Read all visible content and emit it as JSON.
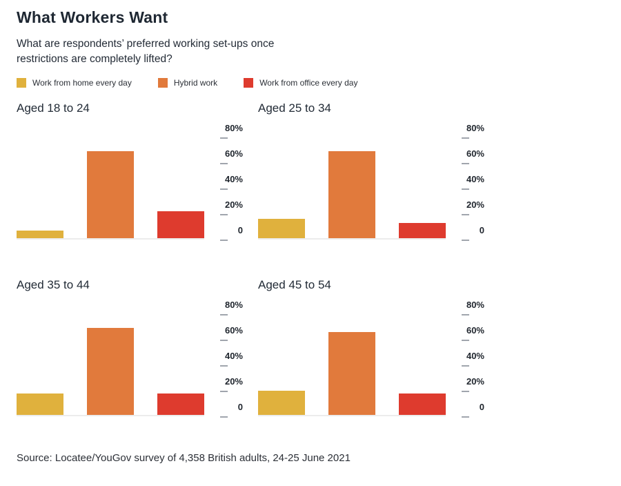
{
  "header": {
    "title": "What Workers Want",
    "subtitle": "What are respondents’ preferred working set-ups once restrictions are completely lifted?"
  },
  "legend": {
    "items": [
      {
        "label": "Work from home every day",
        "color": "#E0B13D"
      },
      {
        "label": "Hybrid work",
        "color": "#E17A3C"
      },
      {
        "label": "Work from office every day",
        "color": "#DE3B2E"
      }
    ]
  },
  "chart_data": {
    "type": "bar",
    "series_labels": [
      "Work from home every day",
      "Hybrid work",
      "Work from office every day"
    ],
    "colors": [
      "#E0B13D",
      "#E17A3C",
      "#DE3B2E"
    ],
    "ylabel": "",
    "xlabel": "",
    "ylim": [
      0,
      80
    ],
    "y_ticks": [
      "80%",
      "60%",
      "40%",
      "20%",
      "0"
    ],
    "y_tick_values": [
      80,
      60,
      40,
      20,
      0
    ],
    "grid": false,
    "legend_position": "top",
    "charts": [
      {
        "title": "Aged 18 to 24",
        "values": [
          6,
          68,
          21
        ]
      },
      {
        "title": "Aged 25 to 34",
        "values": [
          15,
          68,
          12
        ]
      },
      {
        "title": "Aged 35 to 44",
        "values": [
          17,
          68,
          17
        ]
      },
      {
        "title": "Aged 45 to 54",
        "values": [
          19,
          65,
          17
        ]
      }
    ]
  },
  "source": "Source: Locatee/YouGov survey of 4,358 British adults, 24-25 June 2021"
}
